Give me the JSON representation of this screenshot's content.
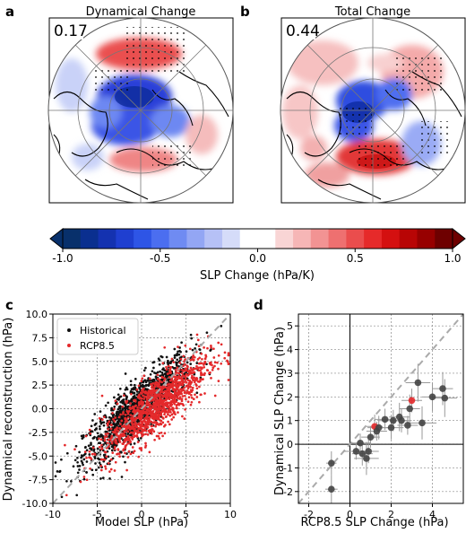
{
  "panels": {
    "a": {
      "label": "a",
      "title": "Dynamical Change",
      "value_label": "0.17"
    },
    "b": {
      "label": "b",
      "title": "Total Change",
      "value_label": "0.44"
    },
    "c": {
      "label": "c"
    },
    "d": {
      "label": "d"
    }
  },
  "colorbar": {
    "label": "SLP Change (hPa/K)",
    "min": -1.0,
    "max": 1.0,
    "ticks": [
      "-1.0",
      "-0.5",
      "0.0",
      "0.5",
      "1.0"
    ],
    "colors": [
      "#08306b",
      "#0a2f8f",
      "#1432b0",
      "#1f3fd0",
      "#2e55e6",
      "#4b6ef0",
      "#6f8bf2",
      "#93a6f4",
      "#b6c1f6",
      "#d5dcf9",
      "#ffffff",
      "#ffffff",
      "#f9d5d5",
      "#f6b6b6",
      "#f29393",
      "#ee7070",
      "#ea4d4d",
      "#e62a2a",
      "#d41010",
      "#b80505",
      "#970000",
      "#6e0000"
    ]
  },
  "colors": {
    "historical": "#111111",
    "rcp": "#e4292b",
    "dash": "#aaaaaa",
    "grid": "#888888"
  },
  "chart_data": [
    {
      "type": "scatter",
      "panel": "c",
      "xlabel": "Model SLP (hPa)",
      "ylabel": "Dynamical reconstruction (hPa)",
      "xlim": [
        -10,
        10
      ],
      "ylim": [
        -10,
        10
      ],
      "xticks": [
        "-10",
        "-5",
        "0",
        "5",
        "10"
      ],
      "yticks": [
        "-10.0",
        "-7.5",
        "-5.0",
        "-2.5",
        "0.0",
        "2.5",
        "5.0",
        "7.5",
        "10.0"
      ],
      "grid": true,
      "one_to_one_line": true,
      "legend": {
        "position": "top-left",
        "entries": [
          "Historical",
          "RCP8.5"
        ]
      },
      "series": [
        {
          "name": "Historical",
          "color": "#111111",
          "center": [
            -0.5,
            0.0
          ],
          "spread": 3.0,
          "slope": 0.8,
          "noise": 1.45,
          "count": 1200
        },
        {
          "name": "RCP8.5",
          "color": "#e4292b",
          "center": [
            1.5,
            0.3
          ],
          "spread": 3.0,
          "slope": 0.72,
          "noise": 1.5,
          "count": 1200
        }
      ]
    },
    {
      "type": "scatter",
      "panel": "d",
      "xlabel": "RCP8.5 SLP Change (hPa)",
      "ylabel": "Dynamical SLP Change (hPa)",
      "xlim": [
        -2.5,
        5.5
      ],
      "ylim": [
        -2.5,
        5.5
      ],
      "xticks": [
        "-2",
        "0",
        "2",
        "4"
      ],
      "yticks": [
        "-2",
        "-1",
        "0",
        "1",
        "2",
        "3",
        "4",
        "5"
      ],
      "grid": true,
      "one_to_one_line": true,
      "points": [
        {
          "x": -0.9,
          "y": -0.8,
          "xerr": 0.25,
          "yerr": 0.5,
          "color": "#444444"
        },
        {
          "x": -0.9,
          "y": -1.9,
          "xerr": 0.3,
          "yerr": 0.6,
          "color": "#444444"
        },
        {
          "x": 0.3,
          "y": -0.3,
          "xerr": 0.6,
          "yerr": 0.35,
          "color": "#444444"
        },
        {
          "x": 0.5,
          "y": 0.05,
          "xerr": 0.5,
          "yerr": 0.4,
          "color": "#444444"
        },
        {
          "x": 0.6,
          "y": -0.4,
          "xerr": 0.5,
          "yerr": 0.5,
          "color": "#444444"
        },
        {
          "x": 0.8,
          "y": -0.6,
          "xerr": 0.6,
          "yerr": 0.7,
          "color": "#444444"
        },
        {
          "x": 0.9,
          "y": -0.3,
          "xerr": 0.5,
          "yerr": 0.5,
          "color": "#444444"
        },
        {
          "x": 1.0,
          "y": 0.3,
          "xerr": 0.45,
          "yerr": 0.45,
          "color": "#444444"
        },
        {
          "x": 1.2,
          "y": 0.75,
          "xerr": 0.4,
          "yerr": 0.5,
          "color": "#e4292b"
        },
        {
          "x": 1.3,
          "y": 0.55,
          "xerr": 0.5,
          "yerr": 0.4,
          "color": "#444444"
        },
        {
          "x": 1.4,
          "y": 0.7,
          "xerr": 0.55,
          "yerr": 0.5,
          "color": "#444444"
        },
        {
          "x": 1.7,
          "y": 1.05,
          "xerr": 0.5,
          "yerr": 0.45,
          "color": "#444444"
        },
        {
          "x": 2.0,
          "y": 0.7,
          "xerr": 0.6,
          "yerr": 0.5,
          "color": "#444444"
        },
        {
          "x": 2.1,
          "y": 1.0,
          "xerr": 0.7,
          "yerr": 0.45,
          "color": "#444444"
        },
        {
          "x": 2.4,
          "y": 1.15,
          "xerr": 0.5,
          "yerr": 0.6,
          "color": "#444444"
        },
        {
          "x": 2.5,
          "y": 1.0,
          "xerr": 0.5,
          "yerr": 0.5,
          "color": "#444444"
        },
        {
          "x": 2.8,
          "y": 0.8,
          "xerr": 0.5,
          "yerr": 0.4,
          "color": "#444444"
        },
        {
          "x": 2.9,
          "y": 1.5,
          "xerr": 0.5,
          "yerr": 0.6,
          "color": "#444444"
        },
        {
          "x": 3.0,
          "y": 1.85,
          "xerr": 0.5,
          "yerr": 0.5,
          "color": "#e4292b"
        },
        {
          "x": 3.3,
          "y": 2.6,
          "xerr": 0.6,
          "yerr": 0.8,
          "color": "#444444"
        },
        {
          "x": 3.5,
          "y": 0.9,
          "xerr": 0.7,
          "yerr": 0.7,
          "color": "#444444"
        },
        {
          "x": 4.0,
          "y": 2.0,
          "xerr": 0.5,
          "yerr": 0.6,
          "color": "#444444"
        },
        {
          "x": 4.5,
          "y": 2.35,
          "xerr": 0.5,
          "yerr": 0.7,
          "color": "#444444"
        },
        {
          "x": 4.6,
          "y": 1.95,
          "xerr": 0.6,
          "yerr": 0.8,
          "color": "#444444"
        }
      ]
    }
  ]
}
